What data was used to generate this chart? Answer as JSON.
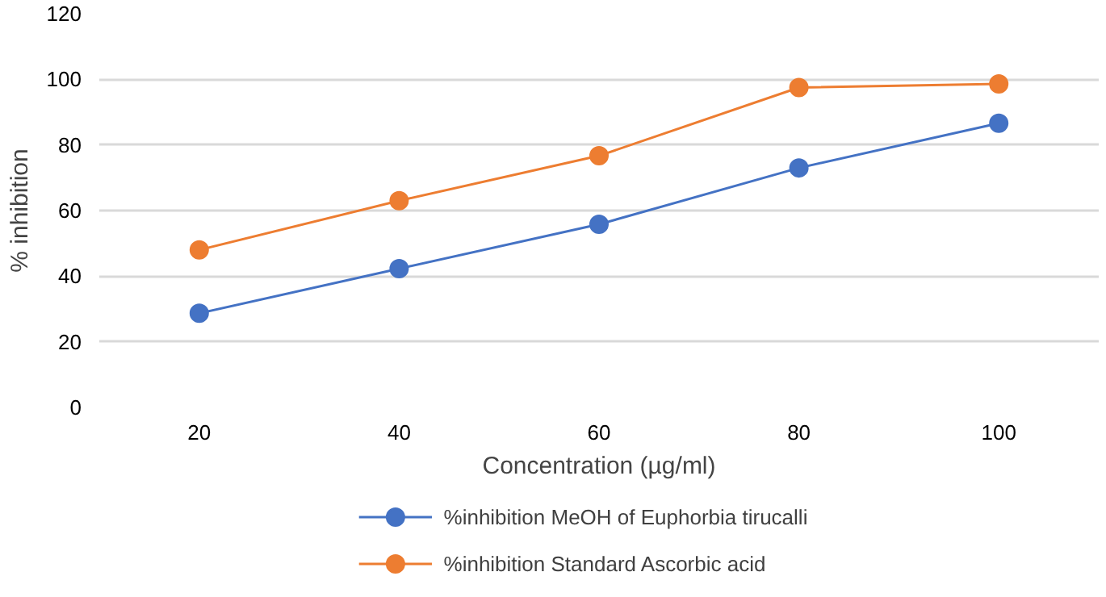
{
  "chart_data": {
    "type": "line",
    "xlabel": "Concentration (µg/ml)",
    "ylabel": "% inhibition",
    "categories": [
      "20",
      "40",
      "60",
      "80",
      "100"
    ],
    "series": [
      {
        "name": "%inhibition MeOH of Euphorbia tirucalli",
        "color": "#4472c4",
        "values": [
          28.7,
          42.3,
          55.8,
          73,
          86.6
        ]
      },
      {
        "name": "%inhibition Standard Ascorbic acid",
        "color": "#ed7d31",
        "values": [
          48,
          63,
          76.7,
          97.5,
          98.6
        ]
      }
    ],
    "ylim": [
      0,
      120
    ],
    "yticks": [
      0,
      20,
      40,
      60,
      80,
      100,
      120
    ],
    "grid": "y",
    "legend": "bottom",
    "marker": "circle",
    "line_style": "solid"
  }
}
